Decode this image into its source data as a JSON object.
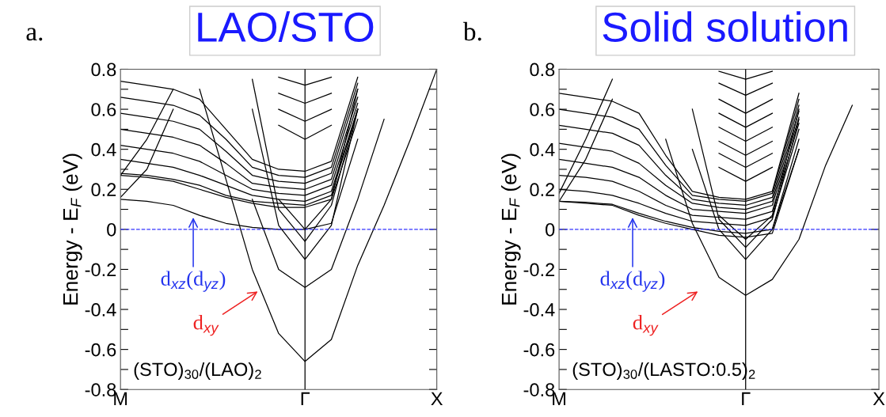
{
  "chart_data": [
    {
      "type": "line",
      "title": "a.",
      "subtitle": "LAO/STO",
      "ylabel": "Energy - E$_{F}$ (eV)",
      "categories": [
        "M",
        null,
        null,
        null,
        null,
        null,
        null,
        "Γ",
        null,
        null,
        null,
        null,
        "X"
      ],
      "ylim": [
        -0.8,
        0.8
      ],
      "yticks": [
        -0.8,
        {
          "value": -0.7,
          "label": null
        },
        -0.6,
        {
          "value": -0.5,
          "label": null
        },
        -0.4,
        {
          "value": -0.3,
          "label": null
        },
        -0.2,
        {
          "value": -0.1,
          "label": null
        },
        0,
        {
          "value": 0.1,
          "label": null
        },
        0.2,
        {
          "value": 0.3,
          "label": null
        },
        0.4,
        {
          "value": 0.5,
          "label": null
        },
        0.6,
        {
          "value": 0.7,
          "label": null
        },
        0.8
      ],
      "grid": false,
      "line_style": "solid",
      "marker": "none",
      "ref_lines": [
        {
          "axis": "y",
          "value": 0,
          "color": "#3333ff",
          "line_style": "dashed"
        },
        {
          "axis": "x",
          "value": "Γ",
          "color": "#000000",
          "line_style": "solid"
        }
      ],
      "annotations": [
        {
          "text": "d$_{xz}$(d$_{yz}$)",
          "y": 0.07
        },
        "d$_{xy}$",
        "(STO)$_{30}$/(LAO)$_{2}$"
      ],
      "series": [
        {
          "color": "#000000",
          "values": [
            null,
            null,
            null,
            0.7,
            0.25,
            -0.2,
            -0.52,
            -0.66,
            -0.55,
            -0.18,
            0.12,
            0.45,
            0.8
          ]
        },
        {
          "color": "#000000",
          "values": [
            null,
            null,
            null,
            null,
            null,
            0.15,
            -0.2,
            -0.29,
            -0.2,
            0.15,
            0.55,
            null,
            null
          ]
        },
        {
          "color": "#000000",
          "values": [
            null,
            null,
            null,
            null,
            null,
            0.6,
            0.02,
            -0.15,
            0.02,
            0.6,
            null,
            null,
            null
          ]
        },
        {
          "color": "#000000",
          "values": [
            null,
            null,
            null,
            null,
            null,
            0.75,
            0.1,
            -0.06,
            0.12,
            0.6,
            null,
            null,
            null
          ]
        },
        {
          "color": "#000000",
          "values": [
            null,
            null,
            null,
            null,
            null,
            null,
            0.15,
            0.0,
            0.15,
            0.7,
            null,
            null,
            null
          ]
        },
        {
          "color": "#000000",
          "values": [
            null,
            null,
            null,
            null,
            null,
            null,
            0.52,
            0.45,
            0.52,
            null,
            null,
            null,
            null
          ]
        },
        {
          "color": "#000000",
          "values": [
            null,
            null,
            null,
            null,
            null,
            null,
            0.6,
            0.54,
            0.6,
            null,
            null,
            null,
            null
          ]
        },
        {
          "color": "#000000",
          "values": [
            null,
            null,
            null,
            null,
            null,
            null,
            0.68,
            0.63,
            0.68,
            null,
            null,
            null,
            null
          ]
        },
        {
          "color": "#000000",
          "values": [
            null,
            null,
            null,
            null,
            null,
            null,
            0.76,
            0.72,
            0.76,
            null,
            null,
            null,
            null
          ]
        },
        {
          "color": "#000000",
          "values": [
            0.15,
            0.14,
            0.12,
            0.07,
            0.03,
            0.01,
            0.0,
            0.0,
            0.03,
            0.45,
            null,
            null,
            null
          ]
        },
        {
          "color": "#000000",
          "values": [
            0.27,
            0.26,
            0.24,
            0.2,
            0.16,
            0.13,
            0.11,
            0.11,
            0.15,
            0.55,
            null,
            null,
            null
          ]
        },
        {
          "color": "#000000",
          "values": [
            0.28,
            0.27,
            0.25,
            0.22,
            0.17,
            0.14,
            0.13,
            0.12,
            0.17,
            0.6,
            null,
            null,
            null
          ]
        },
        {
          "color": "#000000",
          "values": [
            0.16,
            0.3,
            0.6,
            null,
            null,
            null,
            null,
            null,
            null,
            null,
            null,
            null,
            null
          ]
        },
        {
          "color": "#000000",
          "values": [
            0.27,
            0.45,
            0.7,
            null,
            null,
            null,
            null,
            null,
            null,
            null,
            null,
            null,
            null
          ]
        },
        {
          "color": "#000000",
          "values": [
            0.35,
            0.33,
            0.31,
            0.27,
            0.22,
            0.17,
            0.15,
            0.14,
            0.19,
            0.6,
            null,
            null,
            null
          ]
        },
        {
          "color": "#000000",
          "values": [
            0.42,
            0.4,
            0.38,
            0.34,
            0.27,
            0.2,
            0.18,
            0.17,
            0.22,
            0.63,
            null,
            null,
            null
          ]
        },
        {
          "color": "#000000",
          "values": [
            0.5,
            0.48,
            0.46,
            0.42,
            0.33,
            0.23,
            0.21,
            0.2,
            0.25,
            0.66,
            null,
            null,
            null
          ]
        },
        {
          "color": "#000000",
          "values": [
            0.58,
            0.56,
            0.54,
            0.5,
            0.39,
            0.27,
            0.24,
            0.23,
            0.28,
            0.7,
            null,
            null,
            null
          ]
        },
        {
          "color": "#000000",
          "values": [
            0.66,
            0.64,
            0.62,
            0.57,
            0.45,
            0.31,
            0.27,
            0.26,
            0.31,
            0.73,
            null,
            null,
            null
          ]
        },
        {
          "color": "#000000",
          "values": [
            0.74,
            0.72,
            0.7,
            0.65,
            0.5,
            0.35,
            0.3,
            0.29,
            0.34,
            0.76,
            null,
            null,
            null
          ]
        }
      ]
    },
    {
      "type": "line",
      "title": "b.",
      "subtitle": "Solid solution",
      "ylabel": "Energy - E$_{F}$ (eV)",
      "categories": [
        "M",
        null,
        null,
        null,
        null,
        null,
        null,
        "Γ",
        null,
        null,
        null,
        null,
        "X"
      ],
      "ylim": [
        -0.8,
        0.8
      ],
      "yticks": [
        -0.8,
        {
          "value": -0.7,
          "label": null
        },
        -0.6,
        {
          "value": -0.5,
          "label": null
        },
        -0.4,
        {
          "value": -0.3,
          "label": null
        },
        -0.2,
        {
          "value": -0.1,
          "label": null
        },
        0,
        {
          "value": 0.1,
          "label": null
        },
        0.2,
        {
          "value": 0.3,
          "label": null
        },
        0.4,
        {
          "value": 0.5,
          "label": null
        },
        0.6,
        {
          "value": 0.7,
          "label": null
        },
        0.8
      ],
      "grid": false,
      "line_style": "solid",
      "marker": "none",
      "ref_lines": [
        {
          "axis": "y",
          "value": 0,
          "color": "#3333ff",
          "line_style": "dashed"
        },
        {
          "axis": "x",
          "value": "Γ",
          "color": "#000000",
          "line_style": "solid"
        }
      ],
      "annotations": [
        {
          "text": "d$_{xz}$(d$_{yz}$)",
          "y": 0.07
        },
        "d$_{xy}$",
        "(STO)$_{30}$/(LASTO:0.5)$_{2}$"
      ],
      "series": [
        {
          "color": "#000000",
          "values": [
            null,
            null,
            null,
            null,
            0.45,
            0.03,
            -0.24,
            -0.33,
            -0.25,
            -0.05,
            0.32,
            0.62,
            null
          ]
        },
        {
          "color": "#000000",
          "values": [
            null,
            null,
            null,
            null,
            null,
            0.4,
            0.0,
            -0.15,
            0.0,
            0.4,
            null,
            null,
            null
          ]
        },
        {
          "color": "#000000",
          "values": [
            null,
            null,
            null,
            null,
            null,
            0.6,
            0.05,
            -0.09,
            0.05,
            0.55,
            null,
            null,
            null
          ]
        },
        {
          "color": "#000000",
          "values": [
            null,
            null,
            null,
            null,
            null,
            null,
            0.07,
            -0.05,
            0.07,
            0.6,
            null,
            null,
            null
          ]
        },
        {
          "color": "#000000",
          "values": [
            null,
            null,
            null,
            null,
            null,
            null,
            0.31,
            0.24,
            0.31,
            null,
            null,
            null,
            null
          ]
        },
        {
          "color": "#000000",
          "values": [
            null,
            null,
            null,
            null,
            null,
            null,
            0.38,
            0.31,
            0.38,
            null,
            null,
            null,
            null
          ]
        },
        {
          "color": "#000000",
          "values": [
            null,
            null,
            null,
            null,
            null,
            null,
            0.44,
            0.37,
            0.44,
            null,
            null,
            null,
            null
          ]
        },
        {
          "color": "#000000",
          "values": [
            null,
            null,
            null,
            null,
            null,
            null,
            0.51,
            0.44,
            0.51,
            null,
            null,
            null,
            null
          ]
        },
        {
          "color": "#000000",
          "values": [
            null,
            null,
            null,
            null,
            null,
            null,
            0.58,
            0.51,
            0.58,
            null,
            null,
            null,
            null
          ]
        },
        {
          "color": "#000000",
          "values": [
            null,
            null,
            null,
            null,
            null,
            null,
            0.65,
            0.58,
            0.65,
            null,
            null,
            null,
            null
          ]
        },
        {
          "color": "#000000",
          "values": [
            null,
            null,
            null,
            null,
            null,
            null,
            0.73,
            0.67,
            0.73,
            null,
            null,
            null,
            null
          ]
        },
        {
          "color": "#000000",
          "values": [
            null,
            null,
            null,
            null,
            null,
            null,
            0.79,
            0.75,
            0.79,
            null,
            null,
            null,
            null
          ]
        },
        {
          "color": "#000000",
          "values": [
            0.14,
            0.13,
            0.12,
            0.07,
            0.03,
            0.0,
            -0.03,
            -0.04,
            -0.02,
            0.4,
            null,
            null,
            null
          ]
        },
        {
          "color": "#000000",
          "values": [
            0.14,
            0.135,
            0.125,
            0.08,
            0.04,
            0.01,
            -0.01,
            -0.02,
            0.0,
            0.45,
            null,
            null,
            null
          ]
        },
        {
          "color": "#000000",
          "values": [
            0.14,
            0.35,
            0.65,
            null,
            null,
            null,
            null,
            null,
            null,
            null,
            null,
            null,
            null
          ]
        },
        {
          "color": "#000000",
          "values": [
            0.18,
            0.45,
            0.75,
            null,
            null,
            null,
            null,
            null,
            null,
            null,
            null,
            null,
            null
          ]
        },
        {
          "color": "#000000",
          "values": [
            0.2,
            0.19,
            0.17,
            0.13,
            0.08,
            0.04,
            0.03,
            0.02,
            0.06,
            0.5,
            null,
            null,
            null
          ]
        },
        {
          "color": "#000000",
          "values": [
            0.27,
            0.26,
            0.24,
            0.19,
            0.12,
            0.07,
            0.06,
            0.05,
            0.09,
            0.53,
            null,
            null,
            null
          ]
        },
        {
          "color": "#000000",
          "values": [
            0.35,
            0.33,
            0.31,
            0.26,
            0.17,
            0.1,
            0.09,
            0.08,
            0.12,
            0.56,
            null,
            null,
            null
          ]
        },
        {
          "color": "#000000",
          "values": [
            0.43,
            0.41,
            0.39,
            0.33,
            0.22,
            0.13,
            0.11,
            0.1,
            0.14,
            0.59,
            null,
            null,
            null
          ]
        },
        {
          "color": "#000000",
          "values": [
            0.52,
            0.5,
            0.48,
            0.42,
            0.27,
            0.15,
            0.13,
            0.12,
            0.16,
            0.62,
            null,
            null,
            null
          ]
        },
        {
          "color": "#000000",
          "values": [
            0.6,
            0.58,
            0.56,
            0.5,
            0.32,
            0.17,
            0.15,
            0.14,
            0.18,
            0.65,
            null,
            null,
            null
          ]
        },
        {
          "color": "#000000",
          "values": [
            0.68,
            0.66,
            0.64,
            0.58,
            0.37,
            0.19,
            0.16,
            0.15,
            0.19,
            0.68,
            null,
            null,
            null
          ]
        }
      ]
    }
  ]
}
